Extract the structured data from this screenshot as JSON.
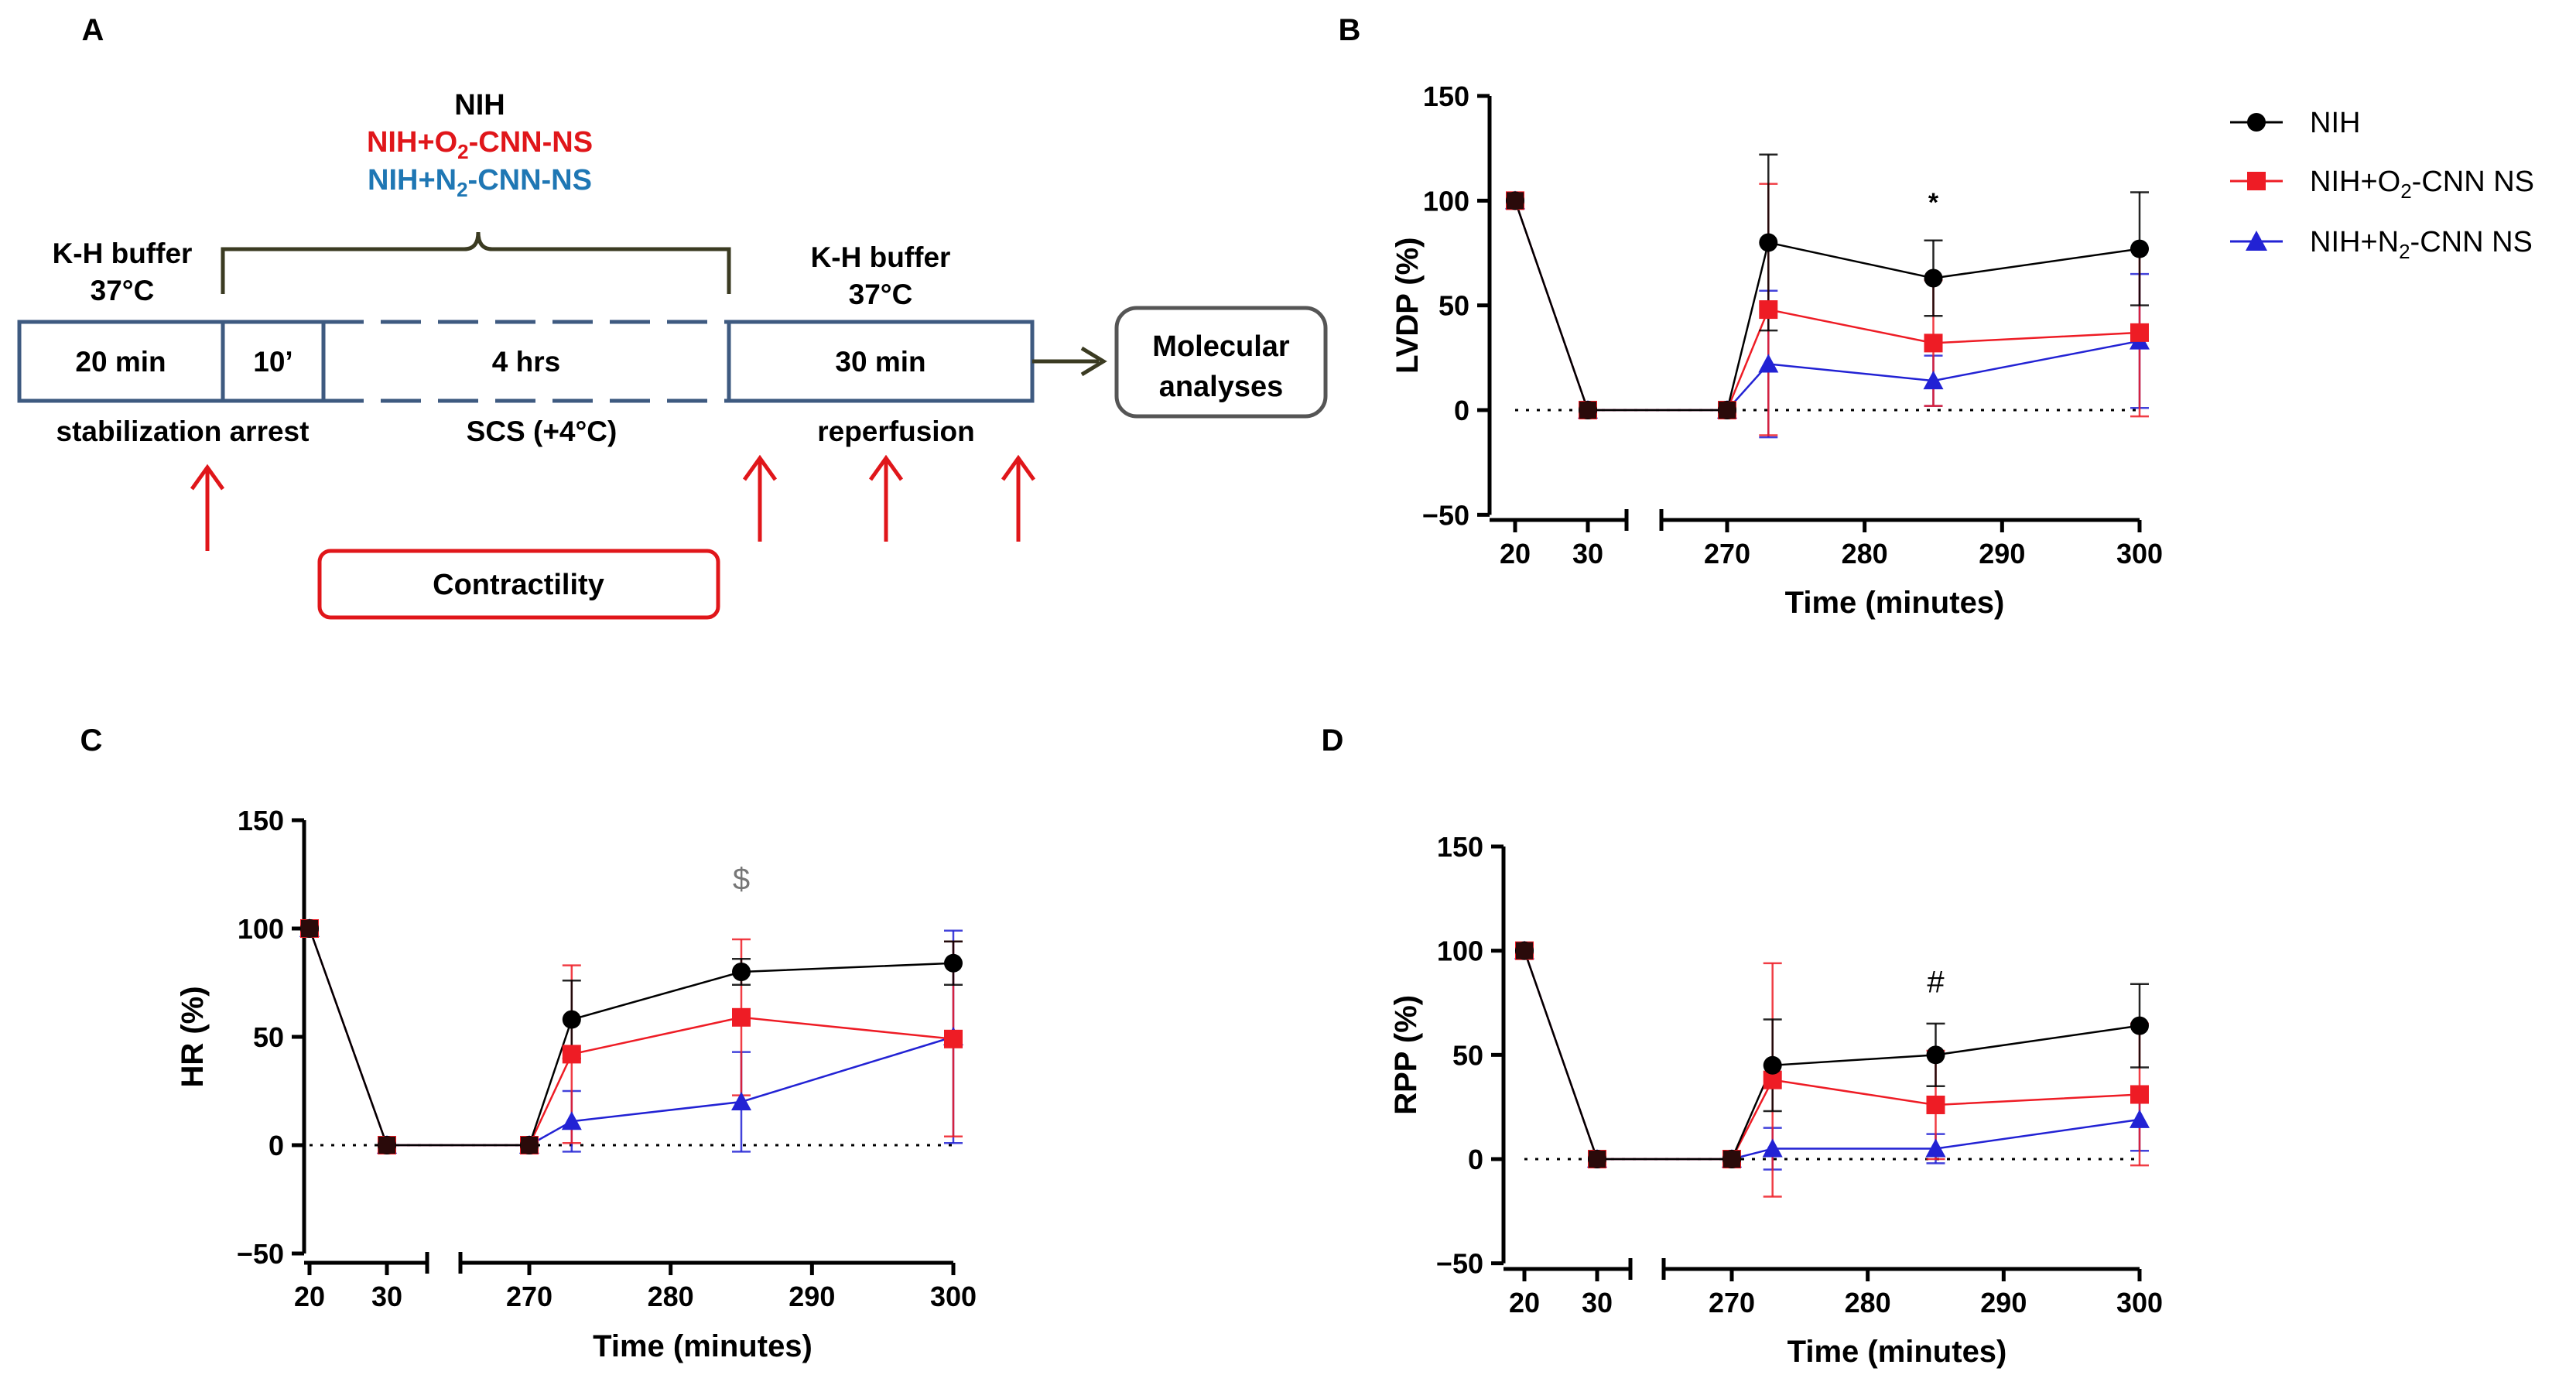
{
  "panel_a": {
    "letter": "A",
    "groups_title": "NIH",
    "group_o2": "NIH+O",
    "group_o2_sub": "2",
    "group_o2_rest": "-CNN-NS",
    "group_n2": "NIH+N",
    "group_n2_sub": "2",
    "group_n2_rest": "-CNN-NS",
    "buffer_left_line1": "K-H buffer",
    "buffer_left_line2": "37°C",
    "buffer_right_line1": "K-H buffer",
    "buffer_right_line2": "37°C",
    "seg_stabilization": "20 min",
    "seg_arrest": "10’",
    "seg_scs": "4 hrs",
    "seg_reperfusion": "30 min",
    "label_stab_arrest": "stabilization arrest",
    "label_scs": "SCS (+4°C)",
    "label_reperfusion": "reperfusion",
    "molecular_line1": "Molecular",
    "molecular_line2": "analyses",
    "contractility": "Contractility",
    "colors": {
      "box": "#3e5a80",
      "bracket": "#3b3b22",
      "arrow": "#e0161a",
      "o2": "#e0161a",
      "n2": "#1f77b4"
    }
  },
  "legend": {
    "nih": "NIH",
    "o2_prefix": "NIH+O",
    "o2_sub": "2",
    "o2_suffix": "-CNN NS",
    "n2_prefix": "NIH+N",
    "n2_sub": "2",
    "n2_suffix": "-CNN NS"
  },
  "chart_data": [
    {
      "panel": "B",
      "type": "line",
      "ylabel": "LVDP (%)",
      "xlabel": "Time (minutes)",
      "ylim": [
        -50,
        150
      ],
      "yticks": [
        150,
        100,
        50,
        0,
        -50
      ],
      "ytick_labels": [
        "150",
        "100",
        "50",
        "0",
        "−50"
      ],
      "x_segments": [
        [
          20,
          30
        ],
        [
          270,
          300
        ]
      ],
      "xticks": [
        20,
        30,
        270,
        280,
        290,
        300
      ],
      "x": [
        20,
        30,
        270,
        273,
        285,
        300
      ],
      "annotation": "*",
      "annotation_x": 285,
      "annotation_y": 95,
      "series": [
        {
          "name": "NIH",
          "color": "#000000",
          "marker": "circle",
          "values": [
            100,
            0,
            0,
            80,
            63,
            77
          ],
          "errors": [
            0,
            0,
            0,
            42,
            18,
            27
          ]
        },
        {
          "name": "NIH+O2-CNN NS",
          "color": "#ee1c25",
          "marker": "square",
          "values": [
            100,
            0,
            0,
            48,
            32,
            37
          ],
          "errors": [
            0,
            0,
            0,
            60,
            30,
            40
          ]
        },
        {
          "name": "NIH+N2-CNN NS",
          "color": "#2222d4",
          "marker": "triangle",
          "values": [
            100,
            0,
            0,
            22,
            14,
            33
          ],
          "errors": [
            0,
            0,
            0,
            35,
            12,
            32
          ]
        }
      ]
    },
    {
      "panel": "C",
      "type": "line",
      "ylabel": "HR (%)",
      "xlabel": "Time (minutes)",
      "ylim": [
        -50,
        150
      ],
      "yticks": [
        150,
        100,
        50,
        0,
        -50
      ],
      "ytick_labels": [
        "150",
        "100",
        "50",
        "0",
        "−50"
      ],
      "x_segments": [
        [
          20,
          30
        ],
        [
          270,
          300
        ]
      ],
      "xticks": [
        20,
        30,
        270,
        280,
        290,
        300
      ],
      "x": [
        20,
        30,
        270,
        273,
        285,
        300
      ],
      "annotation": "$",
      "annotation_x": 285,
      "annotation_y": 118,
      "series": [
        {
          "name": "NIH",
          "color": "#000000",
          "marker": "circle",
          "values": [
            100,
            0,
            0,
            58,
            80,
            84
          ],
          "errors": [
            0,
            0,
            0,
            18,
            6,
            10
          ]
        },
        {
          "name": "NIH+O2-CNN NS",
          "color": "#ee1c25",
          "marker": "square",
          "values": [
            100,
            0,
            0,
            42,
            59,
            49
          ],
          "errors": [
            0,
            0,
            0,
            41,
            36,
            45
          ]
        },
        {
          "name": "NIH+N2-CNN NS",
          "color": "#2222d4",
          "marker": "triangle",
          "values": [
            100,
            0,
            0,
            11,
            20,
            50
          ],
          "errors": [
            0,
            0,
            0,
            14,
            23,
            49
          ]
        }
      ]
    },
    {
      "panel": "D",
      "type": "line",
      "ylabel": "RPP (%)",
      "xlabel": "Time (minutes)",
      "ylim": [
        -50,
        150
      ],
      "yticks": [
        150,
        100,
        50,
        0,
        -50
      ],
      "ytick_labels": [
        "150",
        "100",
        "50",
        "0",
        "−50"
      ],
      "x_segments": [
        [
          20,
          30
        ],
        [
          270,
          300
        ]
      ],
      "xticks": [
        20,
        30,
        270,
        280,
        290,
        300
      ],
      "x": [
        20,
        30,
        270,
        273,
        285,
        300
      ],
      "annotation": "#",
      "annotation_x": 285,
      "annotation_y": 80,
      "series": [
        {
          "name": "NIH",
          "color": "#000000",
          "marker": "circle",
          "values": [
            100,
            0,
            0,
            45,
            50,
            64
          ],
          "errors": [
            0,
            0,
            0,
            22,
            15,
            20
          ]
        },
        {
          "name": "NIH+O2-CNN NS",
          "color": "#ee1c25",
          "marker": "square",
          "values": [
            100,
            0,
            0,
            38,
            26,
            31
          ],
          "errors": [
            0,
            0,
            0,
            56,
            26,
            34
          ]
        },
        {
          "name": "NIH+N2-CNN NS",
          "color": "#2222d4",
          "marker": "triangle",
          "values": [
            100,
            0,
            0,
            5,
            5,
            19
          ],
          "errors": [
            0,
            0,
            0,
            10,
            7,
            15
          ]
        }
      ]
    }
  ]
}
